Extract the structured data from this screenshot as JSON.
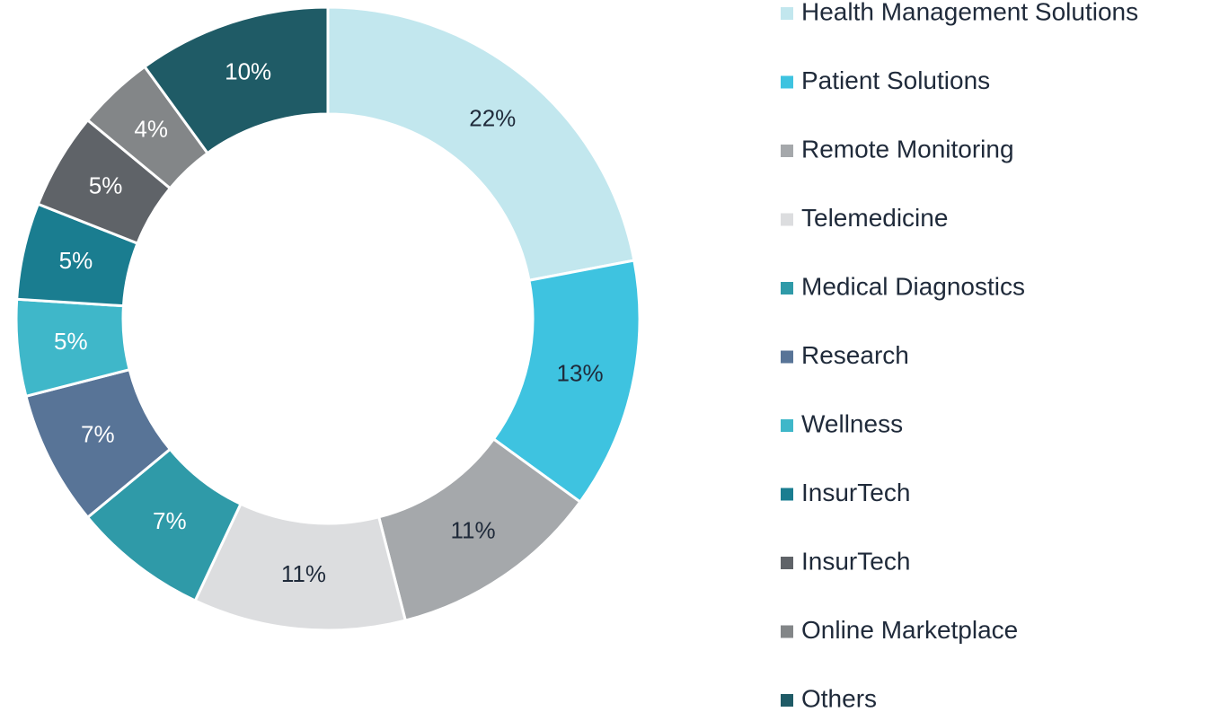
{
  "chart_data": {
    "type": "donut",
    "categories": [
      "Health Management Solutions",
      "Patient Solutions",
      "Remote Monitoring",
      "Telemedicine",
      "Medical Diagnostics",
      "Research",
      "Wellness",
      "InsurTech",
      "InsurTech",
      "Online Marketplace",
      "Others"
    ],
    "values": [
      22,
      13,
      11,
      11,
      7,
      7,
      5,
      5,
      5,
      4,
      10
    ],
    "value_labels": [
      "22%",
      "13%",
      "11%",
      "11%",
      "7%",
      "7%",
      "5%",
      "5%",
      "5%",
      "4%",
      "10%"
    ],
    "colors": [
      "#c2e7ee",
      "#3ec3e0",
      "#a5a8ab",
      "#dcdddf",
      "#2f9aa8",
      "#587497",
      "#3fb7c9",
      "#1a7d90",
      "#5f6368",
      "#838688",
      "#1f5b66"
    ],
    "legend": "right"
  }
}
